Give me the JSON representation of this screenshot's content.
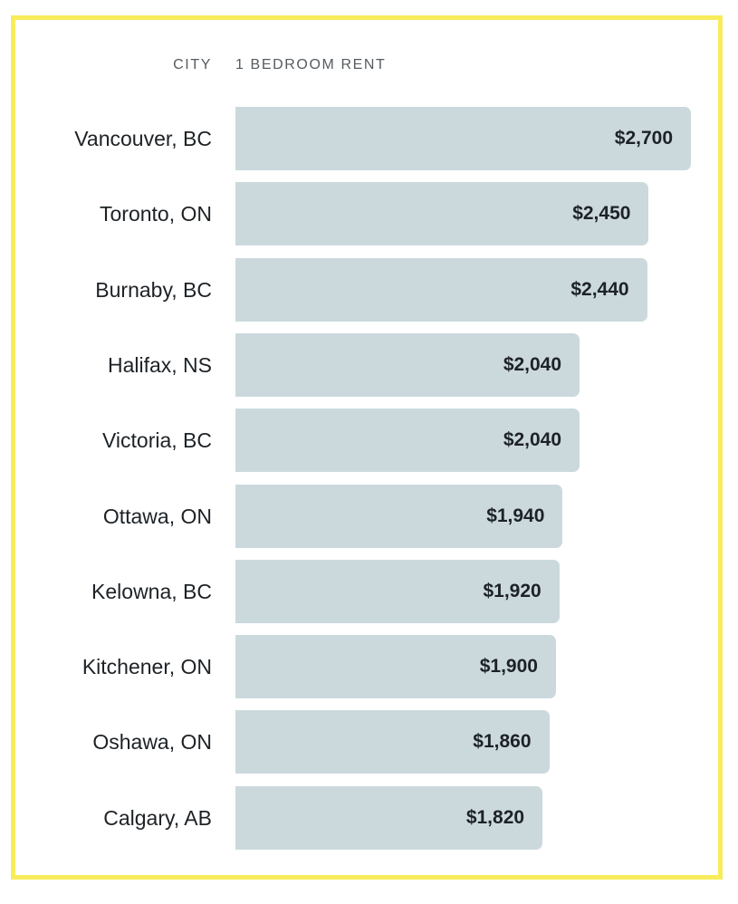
{
  "chart_data": {
    "type": "bar",
    "orientation": "horizontal",
    "header": {
      "category_label": "CITY",
      "value_label": "1 BEDROOM RENT"
    },
    "categories": [
      "Vancouver, BC",
      "Toronto, ON",
      "Burnaby, BC",
      "Halifax, NS",
      "Victoria, BC",
      "Ottawa, ON",
      "Kelowna, BC",
      "Kitchener, ON",
      "Oshawa, ON",
      "Calgary, AB"
    ],
    "values": [
      2700,
      2450,
      2440,
      2040,
      2040,
      1940,
      1920,
      1900,
      1860,
      1820
    ],
    "value_labels": [
      "$2,700",
      "$2,450",
      "$2,440",
      "$2,040",
      "$2,040",
      "$1,940",
      "$1,920",
      "$1,900",
      "$1,860",
      "$1,820"
    ],
    "bar_color": "#cbd9dd",
    "frame_color": "#f7ec5a",
    "grid": false,
    "legend": "none"
  }
}
